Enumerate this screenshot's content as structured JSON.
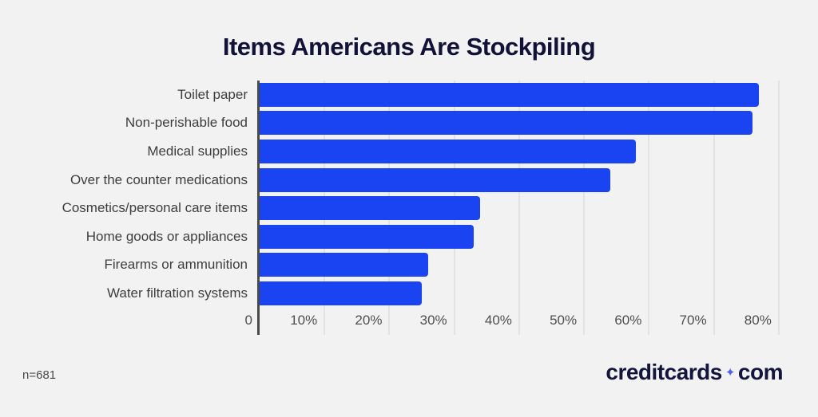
{
  "title": "Items Americans Are Stockpiling",
  "chart_data": {
    "type": "bar",
    "orientation": "horizontal",
    "title": "Items Americans Are Stockpiling",
    "categories": [
      "Toilet paper",
      "Non-perishable food",
      "Medical supplies",
      "Over the counter medications",
      "Cosmetics/personal care items",
      "Home goods or appliances",
      "Firearms or ammunition",
      "Water filtration systems"
    ],
    "values": [
      77,
      76,
      58,
      54,
      34,
      33,
      26,
      25
    ],
    "unit": "%",
    "xlabel": "",
    "ylabel": "",
    "x_ticks": [
      "0",
      "10%",
      "20%",
      "30%",
      "40%",
      "50%",
      "60%",
      "70%",
      "80%"
    ],
    "tick_step": 10,
    "xlim": [
      0,
      83.1
    ],
    "grid": true,
    "legend": false,
    "bar_color": "#1a44f2"
  },
  "footer": {
    "sample_size": "n=681"
  },
  "logo": {
    "part1": "creditcards",
    "separator_icon": "✦",
    "part2": "com"
  },
  "colors": {
    "background": "#f2f2f3",
    "bar": "#1a44f2",
    "title": "#121238",
    "axis_line": "#4a4a4a",
    "gridline": "#e3e3e5",
    "category_label": "#3d3d3d",
    "tick_label": "#4e4e4e",
    "logo_text": "#14153f",
    "logo_sparkle": "#4a61f1"
  }
}
